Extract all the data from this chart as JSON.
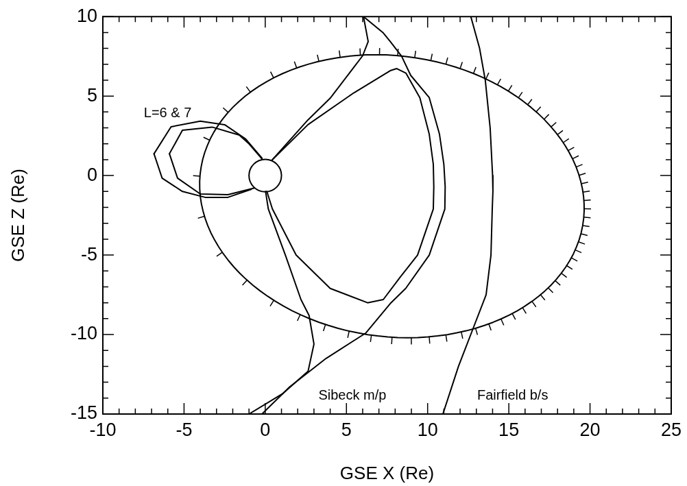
{
  "chart_data": {
    "type": "line",
    "xlabel": "GSE X (Re)",
    "ylabel": "GSE Z (Re)",
    "xlim": [
      -10,
      25
    ],
    "ylim": [
      -15,
      10
    ],
    "xticks": [
      -10,
      {
        "value": -9,
        "label": null
      },
      {
        "value": -8,
        "label": null
      },
      {
        "value": -7,
        "label": null
      },
      {
        "value": -6,
        "label": null
      },
      -5,
      {
        "value": -4,
        "label": null
      },
      {
        "value": -3,
        "label": null
      },
      {
        "value": -2,
        "label": null
      },
      {
        "value": -1,
        "label": null
      },
      0,
      {
        "value": 1,
        "label": null
      },
      {
        "value": 2,
        "label": null
      },
      {
        "value": 3,
        "label": null
      },
      {
        "value": 4,
        "label": null
      },
      5,
      {
        "value": 6,
        "label": null
      },
      {
        "value": 7,
        "label": null
      },
      {
        "value": 8,
        "label": null
      },
      {
        "value": 9,
        "label": null
      },
      10,
      {
        "value": 11,
        "label": null
      },
      {
        "value": 12,
        "label": null
      },
      {
        "value": 13,
        "label": null
      },
      {
        "value": 14,
        "label": null
      },
      15,
      {
        "value": 16,
        "label": null
      },
      {
        "value": 17,
        "label": null
      },
      {
        "value": 18,
        "label": null
      },
      {
        "value": 19,
        "label": null
      },
      20,
      {
        "value": 21,
        "label": null
      },
      {
        "value": 22,
        "label": null
      },
      {
        "value": 23,
        "label": null
      },
      {
        "value": 24,
        "label": null
      },
      25
    ],
    "yticks": [
      -15,
      {
        "value": -14,
        "label": null
      },
      {
        "value": -13,
        "label": null
      },
      {
        "value": -12,
        "label": null
      },
      {
        "value": -11,
        "label": null
      },
      -10,
      {
        "value": -9,
        "label": null
      },
      {
        "value": -8,
        "label": null
      },
      {
        "value": -7,
        "label": null
      },
      {
        "value": -6,
        "label": null
      },
      -5,
      {
        "value": -4,
        "label": null
      },
      {
        "value": -3,
        "label": null
      },
      {
        "value": -2,
        "label": null
      },
      {
        "value": -1,
        "label": null
      },
      0,
      {
        "value": 1,
        "label": null
      },
      {
        "value": 2,
        "label": null
      },
      {
        "value": 3,
        "label": null
      },
      {
        "value": 4,
        "label": null
      },
      5,
      {
        "value": 6,
        "label": null
      },
      {
        "value": 7,
        "label": null
      },
      {
        "value": 8,
        "label": null
      },
      {
        "value": 9,
        "label": null
      },
      10
    ],
    "grid": false,
    "legend": false,
    "marker": "none",
    "line_style": "solid",
    "series": [
      {
        "color": "#000000",
        "x": [
          12.66,
          13.2,
          13.55,
          13.85,
          14.0,
          14.02,
          13.98,
          13.9,
          13.6,
          12.75,
          11.9,
          10.94
        ],
        "values": [
          10,
          8,
          6,
          3,
          0,
          -1.0,
          -2.1,
          -5,
          -7.5,
          -9.75,
          -12,
          -15
        ]
      },
      {
        "color": "#000000",
        "x": [
          6.05,
          7.27,
          7.7,
          8.4,
          8.96,
          10.1,
          10.73,
          11.0,
          11.08,
          11.06,
          10.1,
          8.65,
          7.7,
          6.2,
          3.75,
          1.5,
          -0.2
        ],
        "values": [
          10,
          8.97,
          8.43,
          7.5,
          6.3,
          4.9,
          2.6,
          0.7,
          -0.7,
          -2.1,
          -5.0,
          -7.1,
          -8.05,
          -9.9,
          -11.5,
          -13.3,
          -15
        ]
      },
      {
        "color": "#000000",
        "x": [
          6.05,
          6.34,
          6.0,
          4.03,
          2.63,
          0.65,
          0.44
        ],
        "values": [
          10,
          8.43,
          7.54,
          4.9,
          3.5,
          1.24,
          1.0
        ]
      },
      {
        "color": "#000000",
        "x": [
          0.02,
          0.19,
          1.24,
          2.2,
          2.7,
          3.0,
          2.64,
          1.1,
          -1.0
        ],
        "values": [
          -1.0,
          -2.1,
          -5.0,
          -7.8,
          -8.8,
          -10.6,
          -12.3,
          -13.7,
          -15
        ]
      },
      {
        "color": "#000000",
        "x": [
          0.44,
          2.63,
          5.45,
          7.7,
          8.1,
          8.66,
          9.52,
          10.1,
          10.35,
          10.38,
          10.35,
          9.38,
          8.3,
          7.27,
          6.3,
          4.0,
          1.9,
          0.44,
          0.1
        ],
        "values": [
          1.0,
          3.2,
          5.2,
          6.6,
          6.73,
          6.45,
          4.9,
          2.6,
          0.7,
          -0.7,
          -2.1,
          -5.0,
          -6.4,
          -7.8,
          -8.0,
          -7.1,
          -5.0,
          -2.1,
          -1.0
        ]
      },
      {
        "color": "#000000",
        "x": [
          -5.9,
          -5.1,
          -3.27,
          -1.6,
          -1.0,
          -0.2
        ],
        "values": [
          1.37,
          2.85,
          3.05,
          2.55,
          2.0,
          1.05
        ]
      },
      {
        "color": "#000000",
        "x": [
          -5.9,
          -5.4,
          -4.0,
          -2.3,
          -0.66
        ],
        "values": [
          1.37,
          -0.16,
          -1.16,
          -1.2,
          -0.78
        ]
      },
      {
        "color": "#000000",
        "x": [
          -6.85,
          -5.8,
          -4.0,
          -2.5,
          -1.2,
          -0.2
        ],
        "values": [
          1.37,
          3.07,
          3.42,
          3.2,
          2.3,
          1.1
        ]
      },
      {
        "color": "#000000",
        "x": [
          -6.85,
          -6.35,
          -5.1,
          -3.7,
          -2.3,
          -0.87
        ],
        "values": [
          1.37,
          -0.16,
          -1.0,
          -1.37,
          -1.37,
          -0.87
        ]
      }
    ],
    "annotations": [
      "L=6 & 7",
      "Sibeck m/p",
      "Fairfield b/s"
    ]
  }
}
